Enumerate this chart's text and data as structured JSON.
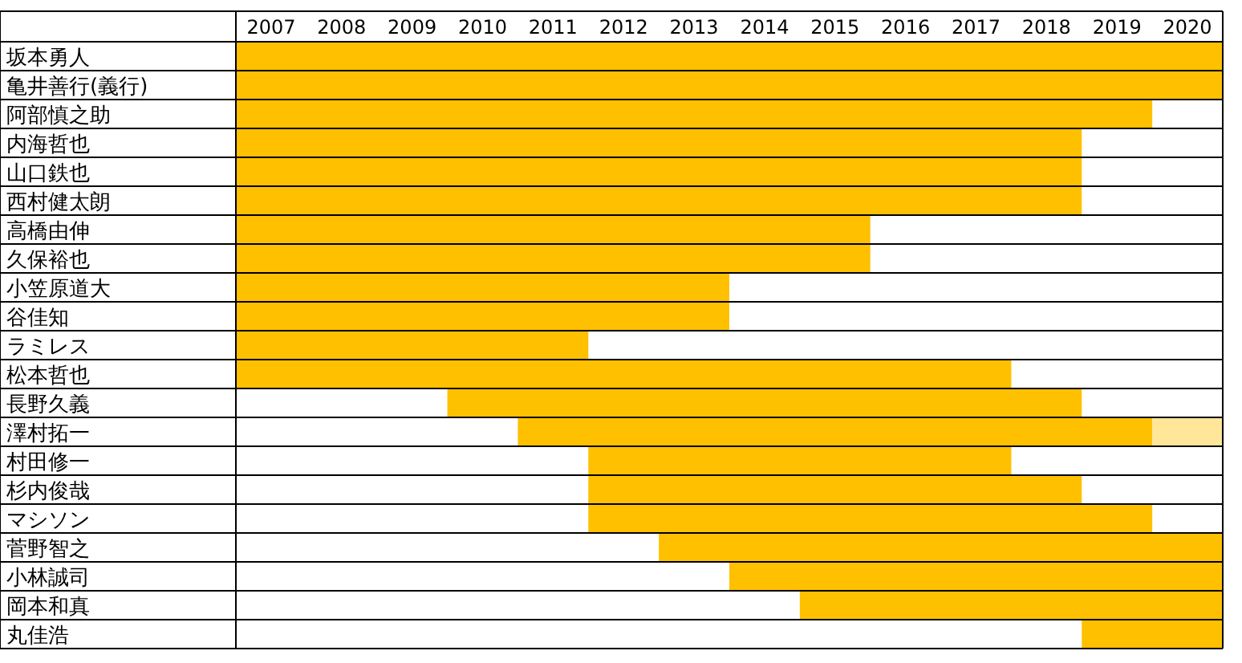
{
  "chart_data": {
    "type": "bar",
    "orientation": "horizontal",
    "categories": [
      "坂本勇人",
      "亀井善行(義行)",
      "阿部慎之助",
      "内海哲也",
      "山口鉄也",
      "西村健太朗",
      "高橋由伸",
      "久保裕也",
      "小笠原道大",
      "谷佳知",
      "ラミレス",
      "松本哲也",
      "長野久義",
      "澤村拓一",
      "村田修一",
      "杉内俊哉",
      "マシソン",
      "菅野智之",
      "小林誠司",
      "岡本和真",
      "丸佳浩"
    ],
    "series": [
      {
        "color": "#ffc000",
        "base": [
          2006.5,
          2006.5,
          2006.5,
          2006.5,
          2006.5,
          2006.5,
          2006.5,
          2006.5,
          2006.5,
          2006.5,
          2006.5,
          2006.5,
          2009.5,
          2010.5,
          2011.5,
          2011.5,
          2011.5,
          2012.5,
          2013.5,
          2014.5,
          2018.5
        ],
        "values": [
          14,
          14,
          13,
          12,
          12,
          12,
          9,
          9,
          7,
          7,
          5,
          11,
          9,
          9,
          6,
          7,
          8,
          8,
          7,
          6,
          2
        ]
      },
      {
        "color": "#ffe699",
        "base": [
          null,
          null,
          null,
          null,
          null,
          null,
          null,
          null,
          null,
          null,
          null,
          null,
          null,
          2019.5,
          null,
          null,
          null,
          null,
          null,
          null,
          null
        ],
        "values": [
          null,
          null,
          null,
          null,
          null,
          null,
          null,
          null,
          null,
          null,
          null,
          null,
          null,
          1,
          null,
          null,
          null,
          null,
          null,
          null,
          null
        ]
      }
    ],
    "xlim": [
      2006.5,
      2020.5
    ],
    "xticks": [
      2007,
      2008,
      2009,
      2010,
      2011,
      2012,
      2013,
      2014,
      2015,
      2016,
      2017,
      2018,
      2019,
      2020
    ],
    "grid": "y"
  }
}
